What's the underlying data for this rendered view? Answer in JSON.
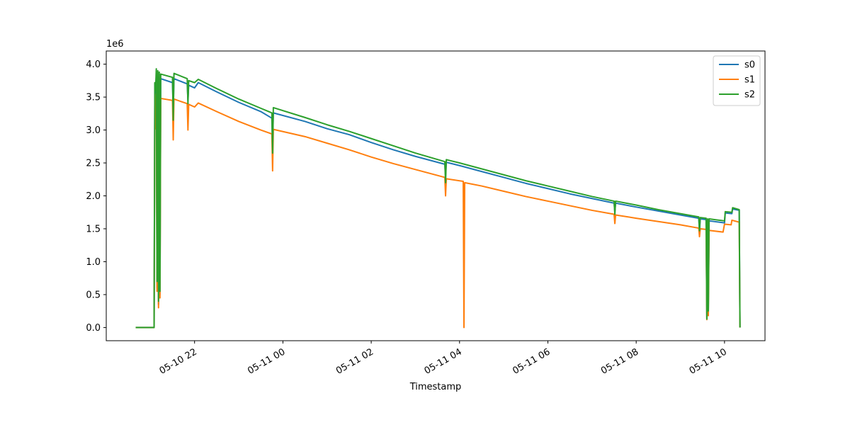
{
  "chart_data": {
    "type": "line",
    "title": "",
    "xlabel": "Timestamp",
    "ylabel": "",
    "y_scale_label": "1e6",
    "xlim": [
      "2024-05-10T20:00",
      "2024-05-11T10:55"
    ],
    "ylim": [
      -200000,
      4200000
    ],
    "x_ticks": [
      {
        "t": "2024-05-10T22:00",
        "label": "05-10 22"
      },
      {
        "t": "2024-05-11T00:00",
        "label": "05-11 00"
      },
      {
        "t": "2024-05-11T02:00",
        "label": "05-11 02"
      },
      {
        "t": "2024-05-11T04:00",
        "label": "05-11 04"
      },
      {
        "t": "2024-05-11T06:00",
        "label": "05-11 06"
      },
      {
        "t": "2024-05-11T08:00",
        "label": "05-11 08"
      },
      {
        "t": "2024-05-11T10:00",
        "label": "05-11 10"
      }
    ],
    "y_ticks": [
      {
        "v": 0,
        "label": "0.0"
      },
      {
        "v": 500000,
        "label": "0.5"
      },
      {
        "v": 1000000,
        "label": "1.0"
      },
      {
        "v": 1500000,
        "label": "1.5"
      },
      {
        "v": 2000000,
        "label": "2.0"
      },
      {
        "v": 2500000,
        "label": "2.5"
      },
      {
        "v": 3000000,
        "label": "3.0"
      },
      {
        "v": 3500000,
        "label": "3.5"
      },
      {
        "v": 4000000,
        "label": "4.0"
      }
    ],
    "grid": false,
    "legend_position": "top-right",
    "series": [
      {
        "name": "s0",
        "color": "#1f77b4",
        "points": [
          [
            "2024-05-10T20:40",
            0
          ],
          [
            "2024-05-10T21:05",
            0
          ],
          [
            "2024-05-10T21:06",
            3700000
          ],
          [
            "2024-05-10T21:07",
            3550000
          ],
          [
            "2024-05-10T21:08",
            3850000
          ],
          [
            "2024-05-10T21:09",
            600000
          ],
          [
            "2024-05-10T21:10",
            3820000
          ],
          [
            "2024-05-10T21:11",
            350000
          ],
          [
            "2024-05-10T21:12",
            3800000
          ],
          [
            "2024-05-10T21:13",
            500000
          ],
          [
            "2024-05-10T21:14",
            3780000
          ],
          [
            "2024-05-10T21:30",
            3720000
          ],
          [
            "2024-05-10T21:31",
            3300000
          ],
          [
            "2024-05-10T21:32",
            3780000
          ],
          [
            "2024-05-10T21:50",
            3700000
          ],
          [
            "2024-05-10T21:51",
            3450000
          ],
          [
            "2024-05-10T21:52",
            3680000
          ],
          [
            "2024-05-10T22:00",
            3640000
          ],
          [
            "2024-05-10T22:05",
            3720000
          ],
          [
            "2024-05-10T22:30",
            3580000
          ],
          [
            "2024-05-10T23:00",
            3420000
          ],
          [
            "2024-05-10T23:30",
            3280000
          ],
          [
            "2024-05-10T23:45",
            3180000
          ],
          [
            "2024-05-10T23:46",
            2750000
          ],
          [
            "2024-05-10T23:47",
            3260000
          ],
          [
            "2024-05-11T00:30",
            3130000
          ],
          [
            "2024-05-11T01:00",
            3020000
          ],
          [
            "2024-05-11T01:30",
            2930000
          ],
          [
            "2024-05-11T02:00",
            2810000
          ],
          [
            "2024-05-11T02:30",
            2700000
          ],
          [
            "2024-05-11T03:00",
            2600000
          ],
          [
            "2024-05-11T03:40",
            2480000
          ],
          [
            "2024-05-11T03:41",
            2300000
          ],
          [
            "2024-05-11T03:42",
            2510000
          ],
          [
            "2024-05-11T04:00",
            2460000
          ],
          [
            "2024-05-11T04:30",
            2370000
          ],
          [
            "2024-05-11T05:00",
            2280000
          ],
          [
            "2024-05-11T05:30",
            2190000
          ],
          [
            "2024-05-11T06:00",
            2110000
          ],
          [
            "2024-05-11T06:30",
            2030000
          ],
          [
            "2024-05-11T07:00",
            1960000
          ],
          [
            "2024-05-11T07:30",
            1890000
          ],
          [
            "2024-05-11T07:31",
            1760000
          ],
          [
            "2024-05-11T07:32",
            1890000
          ],
          [
            "2024-05-11T08:00",
            1830000
          ],
          [
            "2024-05-11T08:30",
            1770000
          ],
          [
            "2024-05-11T09:00",
            1710000
          ],
          [
            "2024-05-11T09:25",
            1660000
          ],
          [
            "2024-05-11T09:26",
            1450000
          ],
          [
            "2024-05-11T09:27",
            1650000
          ],
          [
            "2024-05-11T09:35",
            1640000
          ],
          [
            "2024-05-11T09:36",
            150000
          ],
          [
            "2024-05-11T09:37",
            1630000
          ],
          [
            "2024-05-11T09:38",
            200000
          ],
          [
            "2024-05-11T09:39",
            1620000
          ],
          [
            "2024-05-11T10:00",
            1590000
          ],
          [
            "2024-05-11T10:01",
            1740000
          ],
          [
            "2024-05-11T10:10",
            1730000
          ],
          [
            "2024-05-11T10:11",
            1800000
          ],
          [
            "2024-05-11T10:20",
            1780000
          ],
          [
            "2024-05-11T10:21",
            0
          ]
        ]
      },
      {
        "name": "s1",
        "color": "#ff7f0e",
        "points": [
          [
            "2024-05-10T20:40",
            0
          ],
          [
            "2024-05-10T21:05",
            0
          ],
          [
            "2024-05-10T21:06",
            3350000
          ],
          [
            "2024-05-10T21:07",
            3020000
          ],
          [
            "2024-05-10T21:08",
            3550000
          ],
          [
            "2024-05-10T21:09",
            550000
          ],
          [
            "2024-05-10T21:10",
            3520000
          ],
          [
            "2024-05-10T21:11",
            300000
          ],
          [
            "2024-05-10T21:12",
            3500000
          ],
          [
            "2024-05-10T21:13",
            450000
          ],
          [
            "2024-05-10T21:14",
            3480000
          ],
          [
            "2024-05-10T21:30",
            3450000
          ],
          [
            "2024-05-10T21:31",
            2850000
          ],
          [
            "2024-05-10T21:32",
            3470000
          ],
          [
            "2024-05-10T21:50",
            3400000
          ],
          [
            "2024-05-10T21:51",
            3000000
          ],
          [
            "2024-05-10T21:52",
            3390000
          ],
          [
            "2024-05-10T22:00",
            3350000
          ],
          [
            "2024-05-10T22:05",
            3410000
          ],
          [
            "2024-05-10T22:30",
            3280000
          ],
          [
            "2024-05-10T23:00",
            3130000
          ],
          [
            "2024-05-10T23:30",
            3000000
          ],
          [
            "2024-05-10T23:45",
            2940000
          ],
          [
            "2024-05-10T23:46",
            2380000
          ],
          [
            "2024-05-10T23:47",
            3010000
          ],
          [
            "2024-05-11T00:30",
            2900000
          ],
          [
            "2024-05-11T01:00",
            2800000
          ],
          [
            "2024-05-11T01:30",
            2700000
          ],
          [
            "2024-05-11T02:00",
            2590000
          ],
          [
            "2024-05-11T02:30",
            2490000
          ],
          [
            "2024-05-11T03:00",
            2400000
          ],
          [
            "2024-05-11T03:40",
            2280000
          ],
          [
            "2024-05-11T03:41",
            2000000
          ],
          [
            "2024-05-11T03:42",
            2260000
          ],
          [
            "2024-05-11T04:05",
            2220000
          ],
          [
            "2024-05-11T04:06",
            0
          ],
          [
            "2024-05-11T04:07",
            2200000
          ],
          [
            "2024-05-11T04:30",
            2150000
          ],
          [
            "2024-05-11T05:00",
            2070000
          ],
          [
            "2024-05-11T05:30",
            1990000
          ],
          [
            "2024-05-11T06:00",
            1920000
          ],
          [
            "2024-05-11T06:30",
            1850000
          ],
          [
            "2024-05-11T07:00",
            1780000
          ],
          [
            "2024-05-11T07:30",
            1720000
          ],
          [
            "2024-05-11T07:31",
            1580000
          ],
          [
            "2024-05-11T07:32",
            1710000
          ],
          [
            "2024-05-11T08:00",
            1660000
          ],
          [
            "2024-05-11T08:30",
            1610000
          ],
          [
            "2024-05-11T09:00",
            1560000
          ],
          [
            "2024-05-11T09:25",
            1510000
          ],
          [
            "2024-05-11T09:26",
            1380000
          ],
          [
            "2024-05-11T09:27",
            1500000
          ],
          [
            "2024-05-11T09:35",
            1490000
          ],
          [
            "2024-05-11T09:36",
            120000
          ],
          [
            "2024-05-11T09:37",
            1480000
          ],
          [
            "2024-05-11T09:38",
            180000
          ],
          [
            "2024-05-11T09:39",
            1475000
          ],
          [
            "2024-05-11T09:58",
            1450000
          ],
          [
            "2024-05-11T10:00",
            1570000
          ],
          [
            "2024-05-11T10:09",
            1560000
          ],
          [
            "2024-05-11T10:10",
            1630000
          ],
          [
            "2024-05-11T10:20",
            1600000
          ],
          [
            "2024-05-11T10:21",
            0
          ]
        ]
      },
      {
        "name": "s2",
        "color": "#2ca02c",
        "points": [
          [
            "2024-05-10T20:40",
            0
          ],
          [
            "2024-05-10T21:05",
            0
          ],
          [
            "2024-05-10T21:06",
            3720000
          ],
          [
            "2024-05-10T21:07",
            3600000
          ],
          [
            "2024-05-10T21:08",
            3930000
          ],
          [
            "2024-05-10T21:09",
            700000
          ],
          [
            "2024-05-10T21:10",
            3900000
          ],
          [
            "2024-05-10T21:11",
            400000
          ],
          [
            "2024-05-10T21:12",
            3880000
          ],
          [
            "2024-05-10T21:13",
            550000
          ],
          [
            "2024-05-10T21:14",
            3850000
          ],
          [
            "2024-05-10T21:30",
            3800000
          ],
          [
            "2024-05-10T21:31",
            3150000
          ],
          [
            "2024-05-10T21:32",
            3860000
          ],
          [
            "2024-05-10T21:50",
            3780000
          ],
          [
            "2024-05-10T21:51",
            3400000
          ],
          [
            "2024-05-10T21:52",
            3750000
          ],
          [
            "2024-05-10T22:00",
            3720000
          ],
          [
            "2024-05-10T22:05",
            3770000
          ],
          [
            "2024-05-10T22:30",
            3630000
          ],
          [
            "2024-05-10T23:00",
            3470000
          ],
          [
            "2024-05-10T23:30",
            3330000
          ],
          [
            "2024-05-10T23:45",
            3260000
          ],
          [
            "2024-05-10T23:46",
            2650000
          ],
          [
            "2024-05-10T23:47",
            3340000
          ],
          [
            "2024-05-11T00:30",
            3190000
          ],
          [
            "2024-05-11T01:00",
            3080000
          ],
          [
            "2024-05-11T01:30",
            2980000
          ],
          [
            "2024-05-11T02:00",
            2870000
          ],
          [
            "2024-05-11T02:30",
            2760000
          ],
          [
            "2024-05-11T03:00",
            2650000
          ],
          [
            "2024-05-11T03:40",
            2520000
          ],
          [
            "2024-05-11T03:41",
            2200000
          ],
          [
            "2024-05-11T03:42",
            2550000
          ],
          [
            "2024-05-11T04:00",
            2500000
          ],
          [
            "2024-05-11T04:30",
            2410000
          ],
          [
            "2024-05-11T05:00",
            2320000
          ],
          [
            "2024-05-11T05:30",
            2230000
          ],
          [
            "2024-05-11T06:00",
            2150000
          ],
          [
            "2024-05-11T06:30",
            2070000
          ],
          [
            "2024-05-11T07:00",
            1990000
          ],
          [
            "2024-05-11T07:30",
            1920000
          ],
          [
            "2024-05-11T07:31",
            1720000
          ],
          [
            "2024-05-11T07:32",
            1920000
          ],
          [
            "2024-05-11T08:00",
            1860000
          ],
          [
            "2024-05-11T08:30",
            1790000
          ],
          [
            "2024-05-11T09:00",
            1730000
          ],
          [
            "2024-05-11T09:25",
            1680000
          ],
          [
            "2024-05-11T09:26",
            1470000
          ],
          [
            "2024-05-11T09:27",
            1670000
          ],
          [
            "2024-05-11T09:35",
            1660000
          ],
          [
            "2024-05-11T09:36",
            130000
          ],
          [
            "2024-05-11T09:37",
            1650000
          ],
          [
            "2024-05-11T09:38",
            250000
          ],
          [
            "2024-05-11T09:39",
            1650000
          ],
          [
            "2024-05-11T10:00",
            1620000
          ],
          [
            "2024-05-11T10:01",
            1760000
          ],
          [
            "2024-05-11T10:10",
            1750000
          ],
          [
            "2024-05-11T10:11",
            1820000
          ],
          [
            "2024-05-11T10:20",
            1790000
          ],
          [
            "2024-05-11T10:21",
            0
          ]
        ]
      }
    ]
  }
}
